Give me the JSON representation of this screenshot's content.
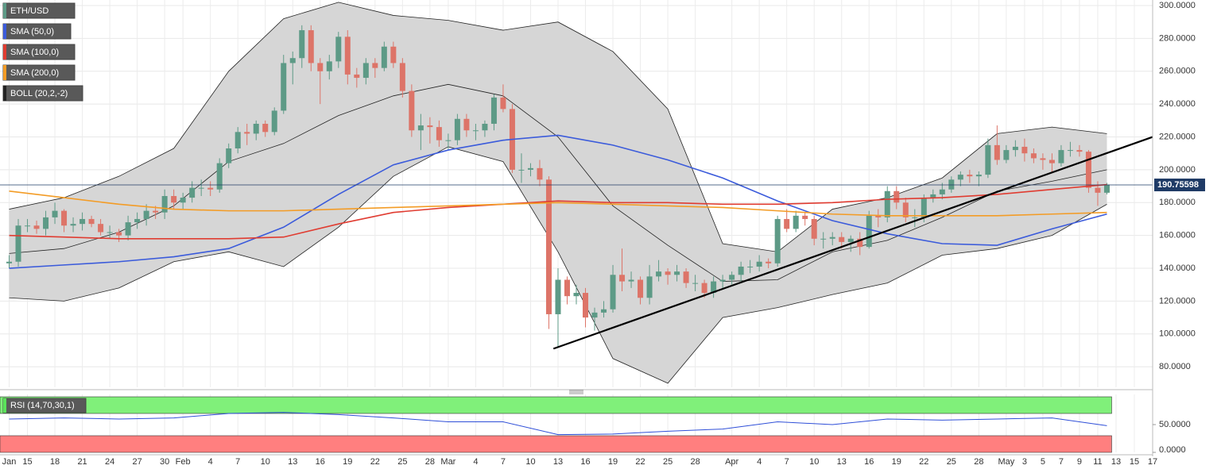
{
  "chart_data": {
    "type": "candlestick",
    "title": "ETH/USD",
    "up_color": "#5d9a86",
    "down_color": "#dd7468",
    "xlim": [
      -1,
      125
    ],
    "ylim": [
      67.5,
      303.4
    ],
    "grid": true,
    "xticks": [
      {
        "value": 0,
        "label": "Jan"
      },
      {
        "value": 2,
        "label": "15"
      },
      {
        "value": 5,
        "label": "18"
      },
      {
        "value": 8,
        "label": "21"
      },
      {
        "value": 11,
        "label": "24"
      },
      {
        "value": 14,
        "label": "27"
      },
      {
        "value": 17,
        "label": "30"
      },
      {
        "value": 19,
        "label": "Feb"
      },
      {
        "value": 22,
        "label": "4"
      },
      {
        "value": 25,
        "label": "7"
      },
      {
        "value": 28,
        "label": "10"
      },
      {
        "value": 31,
        "label": "13"
      },
      {
        "value": 34,
        "label": "16"
      },
      {
        "value": 37,
        "label": "19"
      },
      {
        "value": 40,
        "label": "22"
      },
      {
        "value": 43,
        "label": "25"
      },
      {
        "value": 46,
        "label": "28"
      },
      {
        "value": 48,
        "label": "Mar"
      },
      {
        "value": 51,
        "label": "4"
      },
      {
        "value": 54,
        "label": "7"
      },
      {
        "value": 57,
        "label": "10"
      },
      {
        "value": 60,
        "label": "13"
      },
      {
        "value": 63,
        "label": "16"
      },
      {
        "value": 66,
        "label": "19"
      },
      {
        "value": 69,
        "label": "22"
      },
      {
        "value": 72,
        "label": "25"
      },
      {
        "value": 75,
        "label": "28"
      },
      {
        "value": 79,
        "label": "Apr"
      },
      {
        "value": 82,
        "label": "4"
      },
      {
        "value": 85,
        "label": "7"
      },
      {
        "value": 88,
        "label": "10"
      },
      {
        "value": 91,
        "label": "13"
      },
      {
        "value": 94,
        "label": "16"
      },
      {
        "value": 97,
        "label": "19"
      },
      {
        "value": 100,
        "label": "22"
      },
      {
        "value": 103,
        "label": "25"
      },
      {
        "value": 106,
        "label": "28"
      },
      {
        "value": 109,
        "label": "May"
      },
      {
        "value": 111,
        "label": "3"
      },
      {
        "value": 113,
        "label": "5"
      },
      {
        "value": 115,
        "label": "7"
      },
      {
        "value": 117,
        "label": "9"
      },
      {
        "value": 119,
        "label": "11"
      },
      {
        "value": 121,
        "label": "13"
      },
      {
        "value": 123,
        "label": "15"
      },
      {
        "value": 125,
        "label": "17"
      }
    ],
    "yticks": [
      {
        "value": 300,
        "label": "300.0000"
      },
      {
        "value": 280,
        "label": "280.0000"
      },
      {
        "value": 260,
        "label": "260.0000"
      },
      {
        "value": 240,
        "label": "240.0000"
      },
      {
        "value": 220,
        "label": "220.0000"
      },
      {
        "value": 200,
        "label": "200.0000"
      },
      {
        "value": 180,
        "label": "180.0000"
      },
      {
        "value": 160,
        "label": "160.0000"
      },
      {
        "value": 140,
        "label": "140.0000"
      },
      {
        "value": 120,
        "label": "120.0000"
      },
      {
        "value": 100,
        "label": "100.0000"
      },
      {
        "value": 80,
        "label": "80.0000"
      }
    ],
    "open": [
      143,
      144,
      166,
      166,
      164,
      171,
      175,
      166,
      167,
      170,
      167,
      162,
      162,
      160,
      168,
      170,
      175,
      174,
      184,
      180,
      183,
      189,
      189,
      188,
      204,
      213,
      223,
      222,
      228,
      223,
      236,
      265,
      268,
      285,
      265,
      260,
      266,
      281,
      258,
      256,
      265,
      262,
      275,
      265,
      248,
      224,
      227,
      226,
      218,
      218,
      231,
      224,
      224,
      228,
      244,
      237,
      200,
      200,
      201,
      194,
      112,
      133,
      123,
      125,
      110,
      113,
      115,
      136,
      132,
      133,
      122,
      135,
      138,
      136,
      138,
      131,
      131,
      125,
      132,
      133,
      136,
      141,
      141,
      144,
      143,
      170,
      164,
      172,
      170,
      158,
      158,
      159,
      156,
      158,
      153,
      172,
      171,
      187,
      180,
      171,
      171,
      183,
      185,
      188,
      194,
      197,
      196,
      197,
      215,
      206,
      212,
      214,
      210,
      207,
      206,
      204,
      212,
      212,
      211,
      189,
      186
    ],
    "high": [
      148,
      170,
      170,
      169,
      175,
      180,
      176,
      171,
      174,
      172,
      170,
      166,
      164,
      172,
      174,
      179,
      178,
      188,
      188,
      186,
      193,
      194,
      193,
      207,
      216,
      226,
      228,
      230,
      230,
      238,
      270,
      272,
      288,
      288,
      268,
      270,
      284,
      285,
      262,
      268,
      268,
      278,
      278,
      268,
      252,
      234,
      232,
      230,
      222,
      234,
      234,
      228,
      230,
      246,
      252,
      240,
      210,
      204,
      206,
      196,
      140,
      135,
      130,
      128,
      116,
      120,
      142,
      152,
      138,
      135,
      142,
      145,
      140,
      142,
      140,
      136,
      133,
      135,
      136,
      138,
      144,
      145,
      148,
      146,
      172,
      176,
      175,
      174,
      172,
      162,
      162,
      162,
      160,
      162,
      175,
      176,
      190,
      190,
      183,
      176,
      185,
      188,
      192,
      196,
      199,
      200,
      199,
      219,
      227,
      215,
      218,
      219,
      213,
      210,
      210,
      215,
      217,
      215,
      212,
      193,
      192
    ],
    "low": [
      140,
      141,
      162,
      161,
      160,
      167,
      162,
      162,
      163,
      165,
      160,
      158,
      156,
      157,
      164,
      166,
      170,
      170,
      176,
      176,
      180,
      184,
      184,
      186,
      201,
      210,
      215,
      218,
      220,
      221,
      234,
      252,
      262,
      260,
      240,
      255,
      262,
      252,
      250,
      252,
      256,
      260,
      262,
      244,
      220,
      212,
      216,
      214,
      212,
      215,
      220,
      218,
      220,
      224,
      235,
      198,
      192,
      196,
      190,
      103,
      92,
      118,
      118,
      104,
      102,
      110,
      113,
      126,
      128,
      118,
      118,
      132,
      130,
      132,
      128,
      126,
      122,
      122,
      128,
      130,
      132,
      137,
      138,
      140,
      141,
      162,
      162,
      166,
      154,
      152,
      154,
      152,
      150,
      148,
      152,
      165,
      168,
      176,
      168,
      165,
      168,
      180,
      182,
      186,
      190,
      192,
      190,
      195,
      203,
      204,
      208,
      205,
      204,
      200,
      198,
      202,
      208,
      208,
      186,
      178,
      185
    ],
    "close": [
      144,
      166,
      166,
      164,
      171,
      175,
      166,
      167,
      170,
      167,
      162,
      162,
      160,
      168,
      170,
      175,
      174,
      184,
      180,
      183,
      189,
      189,
      188,
      204,
      213,
      223,
      222,
      228,
      223,
      236,
      265,
      268,
      285,
      265,
      260,
      266,
      281,
      258,
      256,
      265,
      262,
      275,
      265,
      248,
      224,
      227,
      226,
      218,
      218,
      231,
      224,
      224,
      228,
      244,
      237,
      200,
      200,
      201,
      194,
      112,
      133,
      123,
      125,
      110,
      113,
      115,
      136,
      132,
      133,
      122,
      135,
      138,
      136,
      138,
      131,
      131,
      125,
      132,
      133,
      136,
      141,
      141,
      144,
      143,
      170,
      164,
      172,
      170,
      158,
      158,
      159,
      156,
      158,
      153,
      172,
      171,
      187,
      180,
      171,
      171,
      183,
      185,
      188,
      194,
      197,
      196,
      197,
      215,
      206,
      212,
      214,
      210,
      207,
      206,
      204,
      212,
      212,
      211,
      189,
      186,
      191
    ],
    "series": [
      {
        "name": "SMA (50,0)",
        "color": "#3b5bdb",
        "x": [
          0,
          6,
          12,
          18,
          24,
          30,
          36,
          42,
          48,
          54,
          60,
          66,
          72,
          78,
          84,
          90,
          96,
          102,
          108,
          114,
          120
        ],
        "values": [
          140,
          142,
          144,
          147,
          152,
          165,
          185,
          203,
          212,
          218,
          221,
          215,
          206,
          195,
          181,
          169,
          161,
          155,
          154,
          164,
          173
        ]
      },
      {
        "name": "SMA (100,0)",
        "color": "#e03c31",
        "x": [
          0,
          6,
          12,
          18,
          24,
          30,
          36,
          42,
          48,
          54,
          60,
          66,
          72,
          78,
          84,
          90,
          96,
          102,
          108,
          114,
          120
        ],
        "values": [
          160,
          159,
          158,
          158,
          158,
          159,
          167,
          174,
          177,
          179,
          181,
          180,
          180,
          179,
          179,
          180,
          182,
          183,
          185,
          188,
          191
        ]
      },
      {
        "name": "SMA (200,0)",
        "color": "#f39c26",
        "x": [
          0,
          6,
          12,
          18,
          24,
          30,
          36,
          42,
          48,
          54,
          60,
          66,
          72,
          78,
          84,
          90,
          96,
          102,
          108,
          114,
          120
        ],
        "values": [
          187,
          183,
          179,
          176,
          175,
          175,
          176,
          177,
          178,
          179,
          180,
          179,
          178,
          177,
          175,
          173,
          172,
          172,
          172,
          173,
          174
        ]
      }
    ],
    "boll": {
      "name": "BOLL (20,2,-2)",
      "color": "#222222",
      "fill": "#d6d6d6",
      "x": [
        0,
        6,
        12,
        18,
        24,
        30,
        36,
        42,
        48,
        54,
        60,
        66,
        72,
        78,
        84,
        90,
        96,
        102,
        108,
        114,
        120
      ],
      "upper": [
        176,
        183,
        196,
        213,
        260,
        292,
        302,
        294,
        291,
        285,
        290,
        272,
        237,
        155,
        150,
        176,
        183,
        195,
        222,
        226,
        222
      ],
      "middle": [
        149,
        152,
        162,
        178,
        205,
        216,
        233,
        245,
        252,
        245,
        220,
        178,
        154,
        132,
        133,
        150,
        157,
        171,
        187,
        193,
        200
      ],
      "lower": [
        122,
        120,
        128,
        144,
        150,
        141,
        165,
        196,
        214,
        205,
        150,
        85,
        70,
        110,
        116,
        124,
        131,
        148,
        152,
        160,
        179
      ]
    },
    "trendline": {
      "color": "#000000",
      "x": [
        59.5,
        125
      ],
      "values": [
        91,
        220
      ]
    },
    "last_price": {
      "value": 190.75598,
      "label": "190.75598",
      "color": "#1f3b66"
    },
    "rsi": {
      "name": "RSI (14,70,30,1)",
      "color": "#2f4fd8",
      "ylim": [
        0,
        100
      ],
      "upper": 70,
      "lower": 30,
      "yticks": [
        {
          "value": 50,
          "label": "50.0000"
        },
        {
          "value": 0,
          "label": "0.0000"
        }
      ],
      "x": [
        0,
        6,
        12,
        18,
        24,
        30,
        36,
        42,
        48,
        54,
        60,
        66,
        72,
        78,
        84,
        90,
        96,
        102,
        108,
        114,
        120
      ],
      "values": [
        60,
        62,
        60,
        62,
        70,
        72,
        68,
        62,
        55,
        55,
        32,
        33,
        38,
        42,
        55,
        50,
        60,
        58,
        60,
        62,
        48
      ]
    }
  }
}
